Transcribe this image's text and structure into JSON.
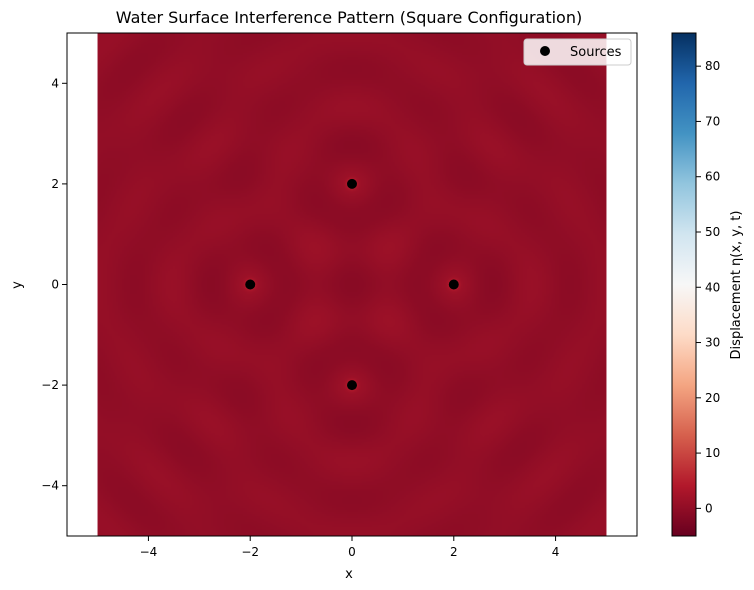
{
  "chart_data": {
    "type": "heatmap",
    "title": "Water Surface Interference Pattern (Square Configuration)",
    "xlabel": "x",
    "ylabel": "y",
    "xlim": [
      -5.6,
      5.6
    ],
    "ylim": [
      -5,
      5
    ],
    "data_extent_x": [
      -5,
      5
    ],
    "data_extent_y": [
      -5,
      5
    ],
    "xticks": [
      -4,
      -2,
      0,
      2,
      4
    ],
    "yticks": [
      -4,
      -2,
      0,
      2,
      4
    ],
    "xtick_labels": [
      "−4",
      "−2",
      "0",
      "2",
      "4"
    ],
    "ytick_labels": [
      "−4",
      "−2",
      "0",
      "2",
      "4"
    ],
    "colormap": "RdBu",
    "colorbar": {
      "label": "Displacement η(x, y, t)",
      "vmin": -5,
      "vmax": 86,
      "ticks": [
        0,
        10,
        20,
        30,
        40,
        50,
        60,
        70,
        80
      ],
      "tick_labels": [
        "0",
        "10",
        "20",
        "30",
        "40",
        "50",
        "60",
        "70",
        "80"
      ]
    },
    "sources": {
      "name": "Sources",
      "points": [
        {
          "x": 0,
          "y": 2
        },
        {
          "x": -2,
          "y": 0
        },
        {
          "x": 2,
          "y": 0
        },
        {
          "x": 0,
          "y": -2
        }
      ],
      "color": "#000000"
    },
    "legend": {
      "position": "upper-right",
      "label": "Sources"
    },
    "grid": false
  }
}
